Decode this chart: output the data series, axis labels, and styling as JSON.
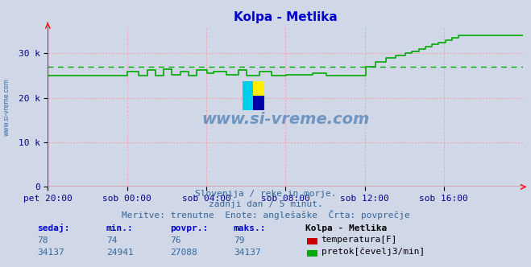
{
  "title": "Kolpa - Metlika",
  "title_color": "#0000cc",
  "bg_color": "#d0d8e8",
  "plot_bg_color": "#d0d8e8",
  "grid_color": "#ff9999",
  "avg_flow": 27088,
  "flow_line_color": "#00aa00",
  "temp_line_color": "#cc0000",
  "avg_line_color": "#00aa00",
  "xtick_labels": [
    "pet 20:00",
    "sob 00:00",
    "sob 04:00",
    "sob 08:00",
    "sob 12:00",
    "sob 16:00"
  ],
  "ytick_labels": [
    "0",
    "10 k",
    "20 k",
    "30 k"
  ],
  "ytick_values": [
    0,
    10000,
    20000,
    30000
  ],
  "ylim": [
    0,
    36000
  ],
  "subtitle1": "Slovenija / reke in morje.",
  "subtitle2": "zadnji dan / 5 minut.",
  "subtitle3": "Meritve: trenutne  Enote: anglešaške  Črta: povprečje",
  "watermark": "www.si-vreme.com",
  "watermark_color": "#2060a0",
  "tick_color": "#000088",
  "legend_title": "Kolpa - Metlika",
  "legend_entries": [
    "temperatura[F]",
    "pretok[čevelj3/min]"
  ],
  "legend_colors": [
    "#cc0000",
    "#00aa00"
  ],
  "table_headers": [
    "sedaj:",
    "min.:",
    "povpr.:",
    "maks.:"
  ],
  "table_temp": [
    78,
    74,
    76,
    79
  ],
  "table_flow": [
    34137,
    24941,
    27088,
    34137
  ],
  "num_points": 288
}
